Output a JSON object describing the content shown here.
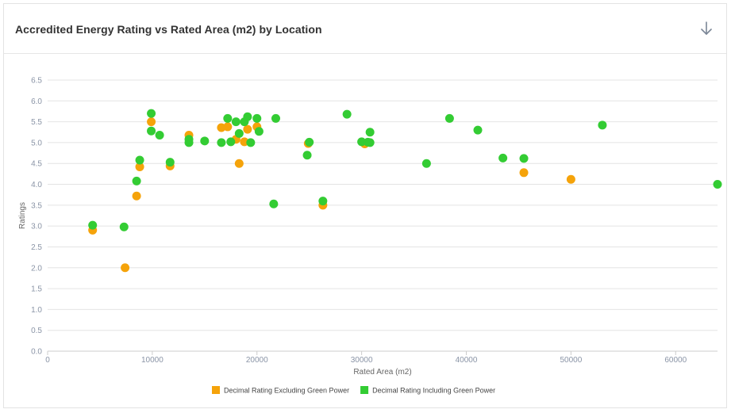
{
  "header": {
    "title": "Accredited Energy Rating vs Rated Area (m2) by Location",
    "download_icon": "arrow-down-icon"
  },
  "chart_data": {
    "type": "scatter",
    "title": "Accredited Energy Rating vs Rated Area (m2) by Location",
    "xlabel": "Rated Area (m2)",
    "ylabel": "Ratings",
    "xlim": [
      0,
      64000
    ],
    "ylim": [
      0,
      6.5
    ],
    "x_ticks": [
      "0",
      "10000",
      "20000",
      "30000",
      "40000",
      "50000",
      "60000"
    ],
    "y_ticks": [
      "0.0",
      "0.5",
      "1.0",
      "1.5",
      "2.0",
      "2.5",
      "3.0",
      "3.5",
      "4.0",
      "4.5",
      "5.0",
      "5.5",
      "6.0",
      "6.5"
    ],
    "grid": "horizontal",
    "legend_position": "bottom",
    "series": [
      {
        "name": "Decimal Rating Excluding Green Power",
        "color": "#f5a30a",
        "points": [
          [
            4300,
            2.9
          ],
          [
            7400,
            2.0
          ],
          [
            8500,
            3.72
          ],
          [
            8800,
            4.42
          ],
          [
            9900,
            5.5
          ],
          [
            11700,
            4.44
          ],
          [
            13500,
            5.18
          ],
          [
            16600,
            5.36
          ],
          [
            17200,
            5.38
          ],
          [
            18000,
            5.08
          ],
          [
            18300,
            4.5
          ],
          [
            18800,
            5.02
          ],
          [
            19100,
            5.32
          ],
          [
            20000,
            5.38
          ],
          [
            24900,
            4.98
          ],
          [
            26300,
            3.5
          ],
          [
            30300,
            4.97
          ],
          [
            45500,
            4.28
          ],
          [
            50000,
            4.12
          ]
        ]
      },
      {
        "name": "Decimal Rating Including Green Power",
        "color": "#33cc33",
        "points": [
          [
            4300,
            3.02
          ],
          [
            7300,
            2.98
          ],
          [
            8500,
            4.08
          ],
          [
            8800,
            4.58
          ],
          [
            9900,
            5.7
          ],
          [
            9900,
            5.28
          ],
          [
            10700,
            5.18
          ],
          [
            11700,
            4.53
          ],
          [
            13500,
            5.0
          ],
          [
            13500,
            5.08
          ],
          [
            15000,
            5.04
          ],
          [
            16600,
            5.0
          ],
          [
            17200,
            5.58
          ],
          [
            17500,
            5.02
          ],
          [
            18000,
            5.5
          ],
          [
            18300,
            5.22
          ],
          [
            18800,
            5.5
          ],
          [
            19100,
            5.62
          ],
          [
            19400,
            5.0
          ],
          [
            20000,
            5.58
          ],
          [
            20200,
            5.27
          ],
          [
            21600,
            3.53
          ],
          [
            21800,
            5.58
          ],
          [
            24800,
            4.7
          ],
          [
            25000,
            5.01
          ],
          [
            26300,
            3.6
          ],
          [
            28600,
            5.68
          ],
          [
            30000,
            5.02
          ],
          [
            30600,
            5.01
          ],
          [
            30800,
            5.25
          ],
          [
            30800,
            5.0
          ],
          [
            36200,
            4.5
          ],
          [
            38400,
            5.58
          ],
          [
            41100,
            5.3
          ],
          [
            43500,
            4.63
          ],
          [
            45500,
            4.62
          ],
          [
            53000,
            5.42
          ],
          [
            64000,
            4.0
          ]
        ]
      }
    ]
  }
}
